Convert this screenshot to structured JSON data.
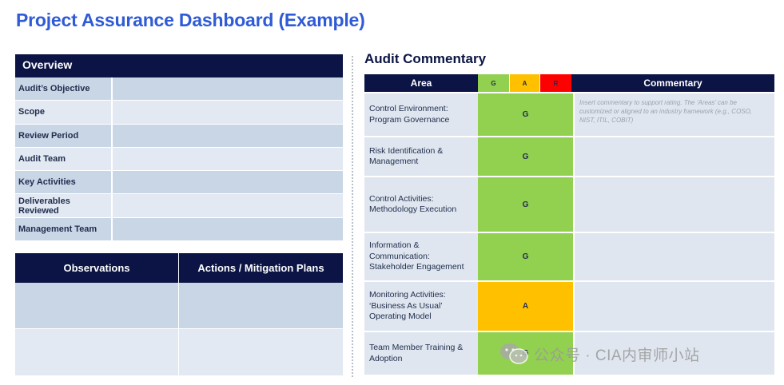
{
  "title": "Project Assurance Dashboard (Example)",
  "overview": {
    "header": "Overview",
    "rows": [
      {
        "label": "Audit’s Objective",
        "value": ""
      },
      {
        "label": "Scope",
        "value": ""
      },
      {
        "label": "Review Period",
        "value": ""
      },
      {
        "label": "Audit Team",
        "value": ""
      },
      {
        "label": "Key Activities",
        "value": ""
      },
      {
        "label": "Deliverables Reviewed",
        "value": ""
      },
      {
        "label": "Management Team",
        "value": ""
      }
    ]
  },
  "observations": {
    "col1": "Observations",
    "col2": "Actions / Mitigation Plans"
  },
  "audit_commentary": {
    "title": "Audit Commentary",
    "headers": {
      "area": "Area",
      "g": "G",
      "a": "A",
      "r": "R",
      "commentary": "Commentary"
    },
    "rows": [
      {
        "area": [
          "Control Environment:",
          "Program Governance"
        ],
        "rating": "G",
        "commentary": "Insert commentary to support rating. The ‘Areas’ can be customized or aligned to an industry framework (e.g., COSO, NIST, ITIL, COBIT)"
      },
      {
        "area": [
          "Risk Identification &",
          "Management"
        ],
        "rating": "G",
        "commentary": ""
      },
      {
        "area": [
          "Control Activities:",
          "Methodology Execution"
        ],
        "rating": "G",
        "commentary": ""
      },
      {
        "area": [
          "Information &",
          "Communication:",
          "Stakeholder Engagement"
        ],
        "rating": "G",
        "commentary": ""
      },
      {
        "area": [
          "Monitoring Activities:",
          "‘Business As Usual’",
          "Operating Model"
        ],
        "rating": "A",
        "commentary": ""
      },
      {
        "area": [
          "Team Member Training &",
          "Adoption"
        ],
        "rating": "G",
        "commentary": ""
      }
    ]
  },
  "colors": {
    "green": "#92d050",
    "amber": "#ffc000",
    "red": "#ff0000",
    "navy": "#0b1444",
    "title_blue": "#2f5bd6"
  },
  "watermark": {
    "text": "公众号 · CIA内审师小站",
    "icon": "wechat-icon"
  }
}
